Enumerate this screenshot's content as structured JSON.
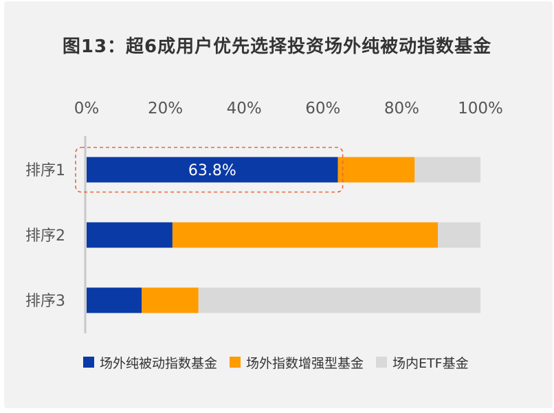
{
  "chart_data": {
    "type": "bar",
    "orientation": "horizontal",
    "stacked": true,
    "title": "图13：超6成用户优先选择投资场外纯被动指数基金",
    "categories": [
      "排序1",
      "排序2",
      "排序3"
    ],
    "x_ticks": [
      "0%",
      "20%",
      "40%",
      "60%",
      "80%",
      "100%"
    ],
    "xlim": [
      0,
      100
    ],
    "series": [
      {
        "name": "场外纯被动指数基金",
        "color": "#0a3aa6",
        "values": [
          63.8,
          21.8,
          14.0
        ]
      },
      {
        "name": "场外指数增强型基金",
        "color": "#ff9c00",
        "values": [
          19.5,
          67.4,
          14.4
        ]
      },
      {
        "name": "场内ETF基金",
        "color": "#d9d9d9",
        "values": [
          16.7,
          10.8,
          71.6
        ]
      }
    ],
    "data_labels": [
      {
        "category": "排序1",
        "series": "场外纯被动指数基金",
        "text": "63.8%"
      }
    ],
    "highlight": {
      "category": "排序1",
      "series": "场外纯被动指数基金",
      "style": "dashed-box",
      "color": "#e8663a"
    },
    "legend_position": "bottom",
    "grid": false
  }
}
